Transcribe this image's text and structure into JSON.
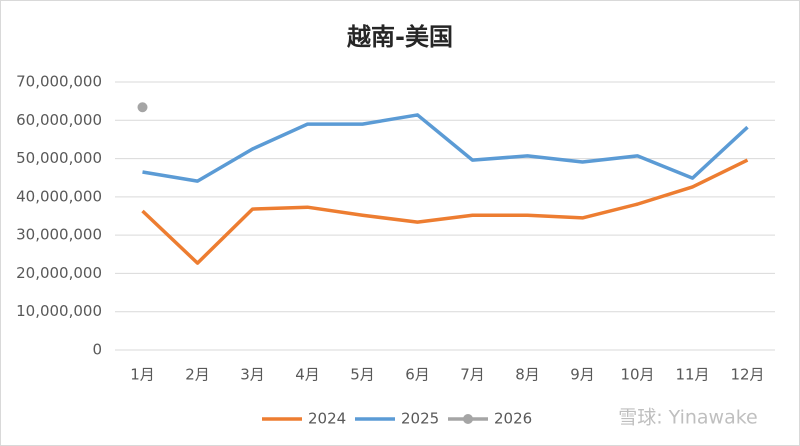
{
  "chart_data": {
    "type": "line",
    "title": "越南-美国",
    "categories": [
      "1月",
      "2月",
      "3月",
      "4月",
      "5月",
      "6月",
      "7月",
      "8月",
      "9月",
      "10月",
      "11月",
      "12月"
    ],
    "series": [
      {
        "name": "2024",
        "color": "#ed7d31",
        "values": [
          36300000,
          22700000,
          36800000,
          37300000,
          35200000,
          33400000,
          35200000,
          35200000,
          34500000,
          38100000,
          42600000,
          49600000
        ]
      },
      {
        "name": "2025",
        "color": "#5b9bd5",
        "values": [
          46500000,
          44100000,
          52500000,
          59000000,
          59000000,
          61400000,
          49600000,
          50700000,
          49100000,
          50700000,
          44900000,
          58200000
        ]
      },
      {
        "name": "2026",
        "color": "#a5a5a5",
        "markers": true,
        "values": [
          63400000,
          null,
          null,
          null,
          null,
          null,
          null,
          null,
          null,
          null,
          null,
          null
        ]
      }
    ],
    "ylim": [
      0,
      70000000
    ],
    "yticks": [
      0,
      {
        "value": 10000000,
        "label": "10,000,000"
      },
      {
        "value": 20000000,
        "label": "20,000,000"
      },
      {
        "value": 30000000,
        "label": "30,000,000"
      },
      {
        "value": 40000000,
        "label": "40,000,000"
      },
      {
        "value": 50000000,
        "label": "50,000,000"
      },
      {
        "value": 60000000,
        "label": "60,000,000"
      },
      {
        "value": 70000000,
        "label": "70,000,000"
      }
    ],
    "grid": true,
    "legend": "bottom",
    "watermark": "雪球: Yinawake"
  }
}
